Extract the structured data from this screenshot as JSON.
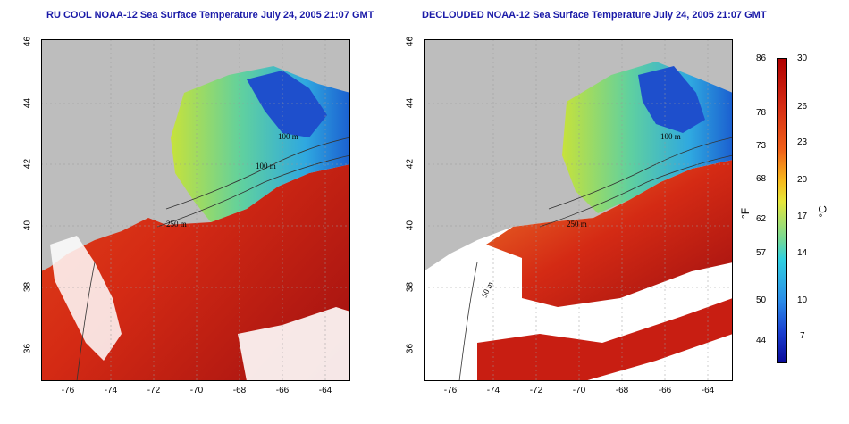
{
  "titles": {
    "left": "RU COOL NOAA-12 Sea Surface Temperature July 24, 2005 21:07 GMT",
    "right": "DECLOUDED NOAA-12 Sea Surface Temperature July 24, 2005 21:07 GMT"
  },
  "axes": {
    "x_ticks": [
      "-76",
      "-74",
      "-72",
      "-70",
      "-68",
      "-66",
      "-64"
    ],
    "y_ticks": [
      "36",
      "38",
      "40",
      "42",
      "44",
      "46"
    ]
  },
  "contour_labels": [
    "100 m",
    "100 m",
    "250 m",
    "250 m",
    "50 m",
    "50 m",
    "100 m"
  ],
  "colorbar": {
    "fahrenheit": [
      "86",
      "78",
      "73",
      "68",
      "62",
      "57",
      "50",
      "44"
    ],
    "celsius": [
      "30",
      "26",
      "23",
      "20",
      "17",
      "14",
      "10",
      "7"
    ],
    "unit_f": "°F",
    "unit_c": "°C"
  },
  "colors": {
    "land": "#bdbdbd",
    "cloud": "#ffffff",
    "warm": "#d42a14",
    "title": "#1a1aa8"
  }
}
